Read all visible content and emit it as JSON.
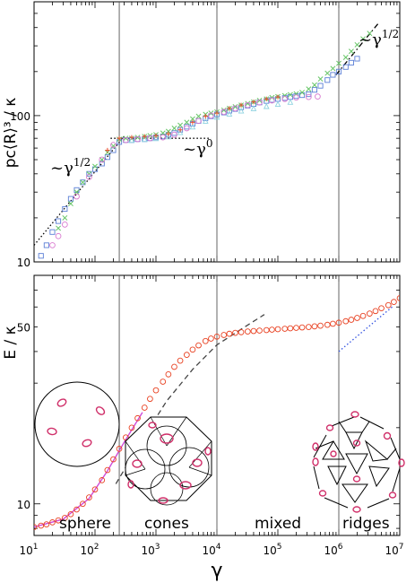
{
  "chart_data": [
    {
      "type": "scatter",
      "panel": "top",
      "title": "",
      "ylabel": "pᴄ⟨R⟩³ / κ",
      "xscale": "log",
      "yscale": "log",
      "xlim": [
        10,
        10000000
      ],
      "ylim": [
        10,
        600
      ],
      "ytick_labels": [
        {
          "value": 100,
          "label": "100"
        },
        {
          "value": 10,
          "label": "10"
        }
      ],
      "regime_boundaries": [
        250,
        10000,
        1000000
      ],
      "annotations": [
        {
          "id": "ann1",
          "base": "~γ",
          "exp": "1/2",
          "at": [
            40,
            45
          ]
        },
        {
          "id": "ann2",
          "base": "~γ",
          "exp": "0",
          "at": [
            2200,
            47
          ]
        },
        {
          "id": "ann3",
          "base": "~γ",
          "exp": "1/2",
          "at": [
            2000000,
            290
          ]
        }
      ],
      "guide_lines": [
        {
          "name": "slope-half-left",
          "style": "dotted",
          "x": [
            10,
            300
          ],
          "y": [
            13,
            72
          ]
        },
        {
          "name": "plateau",
          "style": "dotted",
          "x": [
            180,
            8000
          ],
          "y": [
            70,
            70
          ]
        },
        {
          "name": "slope-half-right",
          "style": "dashdot",
          "x": [
            900000,
            4500000
          ],
          "y": [
            190,
            430
          ]
        }
      ],
      "series": [
        {
          "marker": "square",
          "color": "#5b7fd6",
          "x": [
            13,
            16,
            20,
            25,
            32,
            40,
            50,
            63,
            80,
            100,
            130,
            160,
            200,
            250,
            320,
            400,
            500,
            650,
            800,
            1000,
            1300,
            1600,
            2000,
            2500,
            3200,
            4000,
            5000,
            6500,
            8000,
            10000,
            13000,
            16000,
            20000,
            25000,
            32000,
            40000,
            50000,
            65000,
            80000,
            100000,
            130000,
            160000,
            200000,
            250000,
            320000,
            400000,
            500000,
            650000,
            800000,
            1000000,
            1300000,
            1600000,
            2000000
          ],
          "y": [
            11,
            13,
            16,
            19,
            23,
            27,
            31,
            35,
            40,
            43,
            47,
            52,
            58,
            66,
            68,
            68,
            69,
            69,
            70,
            71,
            72,
            74,
            76,
            80,
            84,
            88,
            92,
            96,
            99,
            102,
            105,
            108,
            111,
            114,
            117,
            120,
            123,
            126,
            128,
            130,
            132,
            134,
            136,
            138,
            140,
            150,
            160,
            175,
            190,
            200,
            215,
            230,
            245
          ]
        },
        {
          "marker": "x",
          "color": "#66c566",
          "x": [
            25,
            32,
            40,
            50,
            63,
            80,
            100,
            130,
            160,
            200,
            250,
            320,
            400,
            500,
            650,
            800,
            1000,
            1300,
            1600,
            2000,
            2500,
            3200,
            4000,
            5000,
            6500,
            8000,
            10000,
            13000,
            16000,
            20000,
            25000,
            32000,
            40000,
            50000,
            65000,
            80000,
            100000,
            130000,
            160000,
            200000,
            250000,
            320000,
            400000,
            500000,
            650000,
            800000,
            1000000,
            1300000,
            1600000,
            2000000,
            2500000,
            3200000
          ],
          "y": [
            17,
            20,
            25,
            30,
            35,
            40,
            45,
            50,
            56,
            62,
            69,
            70,
            70,
            71,
            72,
            73,
            74,
            76,
            78,
            82,
            86,
            90,
            95,
            99,
            102,
            104,
            106,
            109,
            112,
            115,
            118,
            121,
            124,
            127,
            130,
            133,
            135,
            137,
            139,
            141,
            144,
            152,
            162,
            178,
            195,
            210,
            228,
            250,
            275,
            305,
            335,
            365
          ]
        },
        {
          "marker": "circle",
          "color": "#d97bd0",
          "x": [
            20,
            25,
            32,
            50,
            80,
            130,
            200,
            320,
            500,
            800,
            1300,
            2000,
            3200,
            5000,
            8000,
            13000,
            20000,
            32000,
            50000,
            80000,
            130000,
            200000,
            320000,
            450000
          ],
          "y": [
            13,
            15,
            18,
            28,
            38,
            50,
            63,
            68,
            69,
            70,
            71,
            74,
            82,
            92,
            100,
            106,
            112,
            118,
            123,
            127,
            130,
            133,
            134,
            135
          ]
        },
        {
          "marker": "triangle",
          "color": "#8fd3e0",
          "x": [
            400,
            650,
            1000,
            1600,
            2500,
            4000,
            6500,
            10000,
            16000,
            25000,
            40000,
            65000,
            100000,
            160000
          ],
          "y": [
            68,
            69,
            70,
            72,
            77,
            84,
            92,
            98,
            103,
            108,
            112,
            116,
            120,
            124
          ]
        },
        {
          "marker": "plus",
          "color": "#e85030",
          "x": [
            160,
            250,
            400,
            650,
            1000,
            1600,
            2500,
            4000,
            6500,
            10000,
            16000,
            25000,
            40000,
            65000,
            100000
          ],
          "y": [
            58,
            70,
            71,
            72,
            73,
            75,
            80,
            90,
            99,
            104,
            112,
            118,
            124,
            130,
            134
          ]
        }
      ]
    },
    {
      "type": "line",
      "panel": "bottom",
      "title": "",
      "xlabel": "γ",
      "ylabel": "E / κ",
      "xscale": "log",
      "yscale": "log",
      "xlim": [
        10,
        10000000
      ],
      "ylim": [
        7.5,
        80
      ],
      "xtick_labels": [
        {
          "value": 10,
          "base": "10",
          "exp": "1"
        },
        {
          "value": 100,
          "base": "10",
          "exp": "2"
        },
        {
          "value": 1000,
          "base": "10",
          "exp": "3"
        },
        {
          "value": 10000,
          "base": "10",
          "exp": "4"
        },
        {
          "value": 100000,
          "base": "10",
          "exp": "5"
        },
        {
          "value": 1000000,
          "base": "10",
          "exp": "6"
        },
        {
          "value": 10000000,
          "base": "10",
          "exp": "7"
        }
      ],
      "ytick_labels": [
        {
          "value": 50,
          "label": "50"
        },
        {
          "value": 10,
          "label": "10"
        }
      ],
      "regime_boundaries": [
        250,
        10000,
        1000000
      ],
      "regimes": [
        "sphere",
        "cones",
        "mixed",
        "ridges"
      ],
      "guide_lines": [
        {
          "name": "dashed-fit",
          "style": "dashed",
          "color": "#444444",
          "x": [
            220,
            600,
            1500,
            4000,
            10000,
            25000,
            60000
          ],
          "y": [
            12,
            18,
            25.5,
            34,
            42.5,
            49,
            56
          ]
        },
        {
          "name": "magenta-fit",
          "style": "solid",
          "color": "#d04ad8",
          "x": [
            10,
            30,
            80,
            160,
            300,
            600
          ],
          "y": [
            8.1,
            8.7,
            10.5,
            13.5,
            17.5,
            23
          ]
        },
        {
          "name": "ridge-fit",
          "style": "dotted",
          "color": "#3050e0",
          "x": [
            1000000,
            7500000
          ],
          "y": [
            40,
            60
          ]
        }
      ],
      "series": [
        {
          "marker": "circle",
          "color": "#e84020",
          "x": [
            10,
            13,
            16,
            20,
            25,
            32,
            40,
            50,
            63,
            80,
            100,
            130,
            160,
            200,
            250,
            320,
            400,
            500,
            650,
            800,
            1000,
            1300,
            1600,
            2000,
            2500,
            3200,
            4000,
            5000,
            6500,
            8000,
            10000,
            13000,
            16000,
            20000,
            25000,
            32000,
            40000,
            50000,
            65000,
            80000,
            100000,
            130000,
            160000,
            200000,
            250000,
            320000,
            400000,
            500000,
            650000,
            800000,
            1000000,
            1300000,
            1600000,
            2000000,
            2500000,
            3200000,
            4000000,
            5000000,
            6500000,
            8000000,
            10000000
          ],
          "y": [
            8.1,
            8.2,
            8.3,
            8.45,
            8.6,
            8.8,
            9.1,
            9.5,
            10,
            10.6,
            11.4,
            12.4,
            13.6,
            15,
            16.5,
            18.3,
            20,
            21.8,
            24,
            26,
            28.1,
            30.4,
            32.5,
            34.8,
            36.8,
            38.8,
            40.7,
            42.3,
            44,
            45,
            45.8,
            46.5,
            47,
            47.4,
            47.7,
            48,
            48.2,
            48.4,
            48.6,
            48.8,
            49,
            49.2,
            49.4,
            49.6,
            49.8,
            50,
            50.3,
            50.6,
            51,
            51.5,
            52,
            52.7,
            53.4,
            54.3,
            55.3,
            56.5,
            57.8,
            59.3,
            61,
            62.8,
            65
          ]
        }
      ]
    }
  ]
}
